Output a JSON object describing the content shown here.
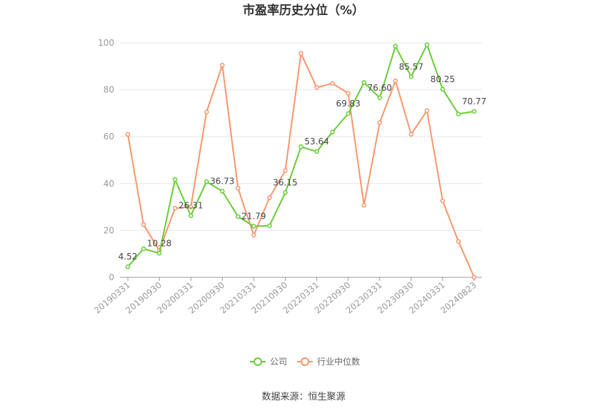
{
  "chart_data": {
    "type": "line",
    "title": "市盈率历史分位（%）",
    "ylim": [
      0,
      100
    ],
    "yticks": [
      "0",
      "20",
      "40",
      "60",
      "80",
      "100"
    ],
    "x_tick_labels": [
      "20190331",
      "20190930",
      "20200331",
      "20200930",
      "20210331",
      "20210930",
      "20220331",
      "20220930",
      "20230331",
      "20230930",
      "20240331",
      "20240823"
    ],
    "x": [
      "20190331",
      "20190630",
      "20190930",
      "20191231",
      "20200331",
      "20200630",
      "20200930",
      "20201231",
      "20210331",
      "20210630",
      "20210930",
      "20211231",
      "20220331",
      "20220630",
      "20220930",
      "20221231",
      "20230331",
      "20230630",
      "20230930",
      "20231231",
      "20240331",
      "20240630",
      "20240823"
    ],
    "series": [
      {
        "name": "公司",
        "color": "#66cc33",
        "values": [
          4.52,
          12.2,
          10.28,
          41.7,
          26.31,
          40.8,
          36.73,
          25.9,
          21.79,
          22.0,
          36.15,
          55.7,
          53.64,
          62.0,
          69.83,
          83.1,
          76.6,
          98.6,
          85.57,
          99.2,
          80.25,
          69.7,
          70.77
        ],
        "labels": [
          "4.52",
          "",
          "10.28",
          "",
          "26.31",
          "",
          "36.73",
          "",
          "21.79",
          "",
          "36.15",
          "",
          "53.64",
          "",
          "69.83",
          "",
          "76.60",
          "",
          "85.57",
          "",
          "80.25",
          "",
          "70.77"
        ]
      },
      {
        "name": "行业中位数",
        "color": "#f7956a",
        "values": [
          61.0,
          22.5,
          11.5,
          29.5,
          30.0,
          70.5,
          90.5,
          38.0,
          18.0,
          34.0,
          45.5,
          95.5,
          81.0,
          82.7,
          78.5,
          30.7,
          66.0,
          83.8,
          61.0,
          71.1,
          32.6,
          15.3,
          0.0
        ]
      }
    ],
    "legend_position": "bottom"
  },
  "source": "数据来源：恒生聚源"
}
